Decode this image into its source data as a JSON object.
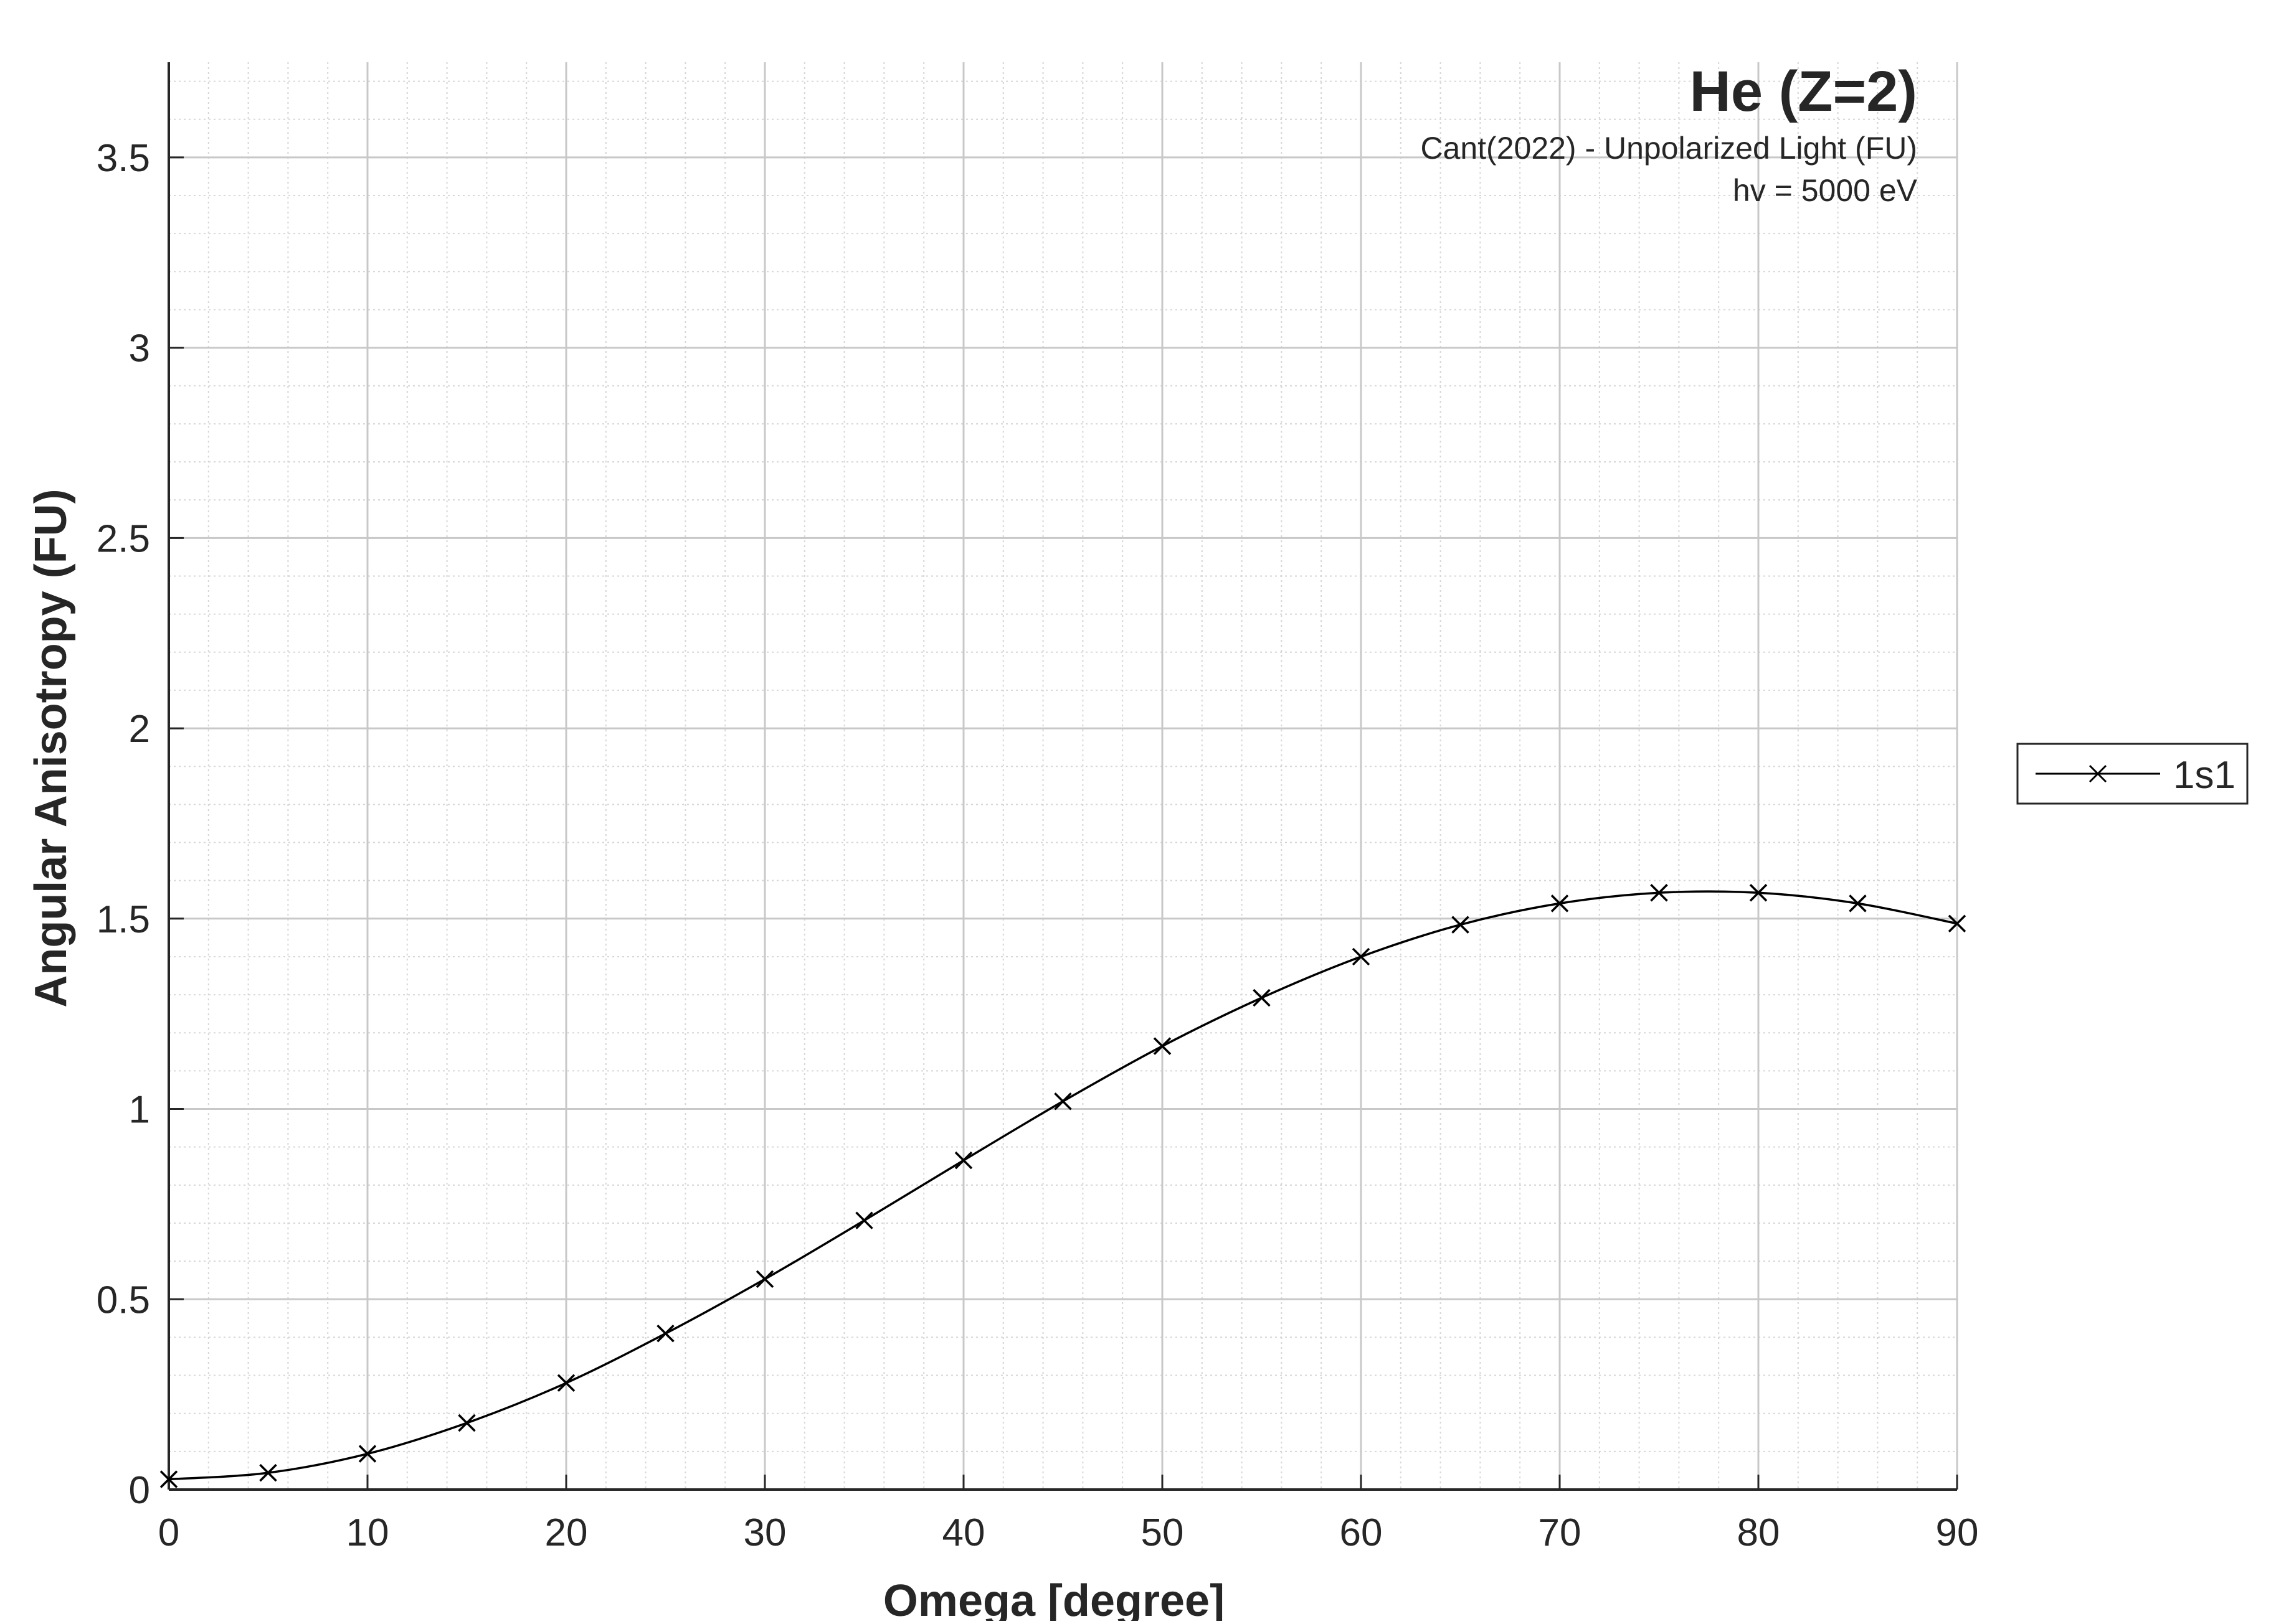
{
  "chart_data": {
    "type": "line",
    "title": "He (Z=2)",
    "subtitle_lines": [
      "Cant(2022) - Unpolarized Light (FU)",
      "hv = 5000 eV"
    ],
    "xlabel": "Omega [degree]",
    "ylabel": "Angular Anisotropy (FU)",
    "xlim": [
      0,
      90
    ],
    "ylim": [
      0,
      3.75
    ],
    "xticks": [
      0,
      10,
      20,
      30,
      40,
      50,
      60,
      70,
      80,
      90
    ],
    "xtick_labels": [
      "0",
      "10",
      "20",
      "30",
      "40",
      "50",
      "60",
      "70",
      "80",
      "90"
    ],
    "yticks": [
      0,
      0.5,
      1,
      1.5,
      2,
      2.5,
      3,
      3.5
    ],
    "ytick_labels": [
      "0",
      "0.5",
      "1",
      "1.5",
      "2",
      "2.5",
      "3",
      "3.5"
    ],
    "grid": true,
    "minor_grid": true,
    "legend_position": "outside right",
    "series": [
      {
        "name": "1s1",
        "marker": "x",
        "color": "#000000",
        "x": [
          0,
          5,
          10,
          15,
          20,
          25,
          30,
          35,
          40,
          45,
          50,
          55,
          60,
          65,
          70,
          75,
          80,
          85,
          90
        ],
        "y": [
          0.027,
          0.044,
          0.094,
          0.175,
          0.28,
          0.41,
          0.553,
          0.707,
          0.865,
          1.02,
          1.165,
          1.292,
          1.4,
          1.484,
          1.54,
          1.568,
          1.568,
          1.54,
          1.487
        ]
      }
    ]
  }
}
